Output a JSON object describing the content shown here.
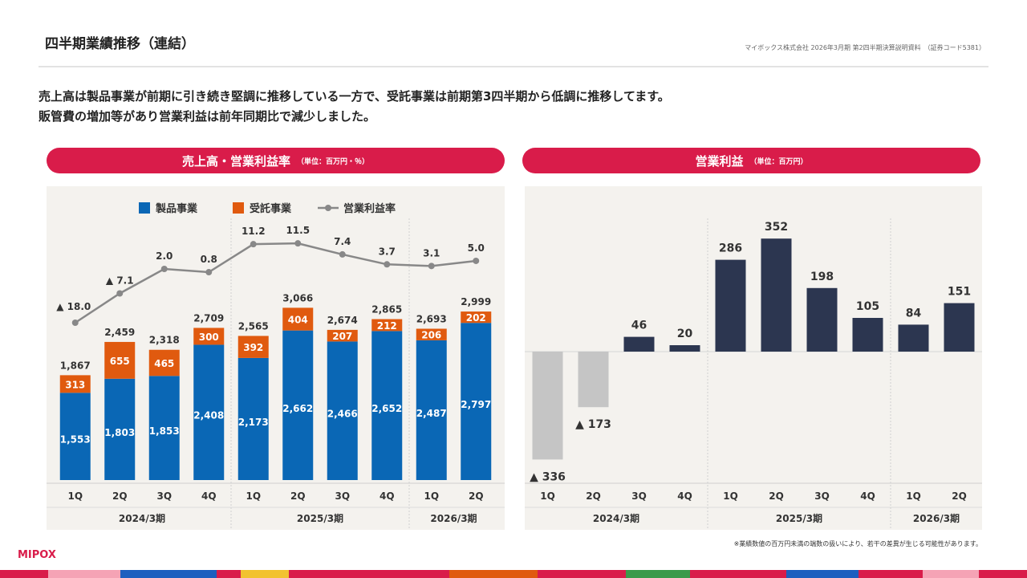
{
  "header": {
    "title": "四半期業績推移（連結）",
    "source": "マイボックス株式会社 2026年3月期 第2四半期決算説明資料　（証券コード5381）"
  },
  "lead": {
    "line1": "売上高は製品事業が前期に引き続き堅調に推移している一方で、受託事業は前期第3四半期から低調に推移してます。",
    "line2": "販管費の増加等があり営業利益は前年同期比で減少しました。"
  },
  "left_chart": {
    "title": "売上高・営業利益率",
    "unit": "（単位：百万円・％）"
  },
  "right_chart": {
    "title": "営業利益",
    "unit": "（単位：百万円）"
  },
  "footnote": "※業績数値の百万円未満の端数の扱いにより、若干の差異が生じる可能性があります。",
  "logo": "MIPOX",
  "colors": {
    "product": "#0a67b5",
    "contract": "#e05a0f",
    "line": "#888888",
    "profit_pos": "#2c3650",
    "profit_neg": "#c5c5c5",
    "accent": "#d91c4a"
  },
  "chart_data": [
    {
      "type": "bar",
      "stacked": true,
      "title": "売上高・営業利益率",
      "categories": [
        "1Q",
        "2Q",
        "3Q",
        "4Q",
        "1Q",
        "2Q",
        "3Q",
        "4Q",
        "1Q",
        "2Q"
      ],
      "groups": [
        {
          "label": "2024/3期",
          "count": 4
        },
        {
          "label": "2025/3期",
          "count": 4
        },
        {
          "label": "2026/3期",
          "count": 2
        }
      ],
      "series": [
        {
          "name": "製品事業",
          "values": [
            1553,
            1803,
            1853,
            2408,
            2173,
            2662,
            2466,
            2652,
            2487,
            2797
          ]
        },
        {
          "name": "受託事業",
          "values": [
            313,
            655,
            465,
            300,
            392,
            404,
            207,
            212,
            206,
            202
          ]
        }
      ],
      "totals": [
        1867,
        2459,
        2318,
        2709,
        2565,
        3066,
        2674,
        2865,
        2693,
        2999
      ],
      "total_labels": [
        "1,867",
        "2,459",
        "2,318",
        "2,709",
        "2,565",
        "3,066",
        "2,674",
        "2,865",
        "2,693",
        "2,999"
      ],
      "product_labels": [
        "1,553",
        "1,803",
        "1,853",
        "2,408",
        "2,173",
        "2,662",
        "2,466",
        "2,652",
        "2,487",
        "2,797"
      ],
      "contract_labels": [
        "313",
        "655",
        "465",
        "300",
        "392",
        "404",
        "207",
        "212",
        "206",
        "202"
      ],
      "line": {
        "name": "営業利益率",
        "values": [
          -18.0,
          -7.1,
          2.0,
          0.8,
          11.2,
          11.5,
          7.4,
          3.7,
          3.1,
          5.0
        ],
        "labels": [
          "▲ 18.0",
          "▲ 7.1",
          "2.0",
          "0.8",
          "11.2",
          "11.5",
          "7.4",
          "3.7",
          "3.1",
          "5.0"
        ],
        "ylim": [
          -18,
          12
        ]
      },
      "ylim": [
        0,
        3500
      ],
      "legend": [
        "製品事業",
        "受託事業",
        "営業利益率"
      ]
    },
    {
      "type": "bar",
      "title": "営業利益",
      "categories": [
        "1Q",
        "2Q",
        "3Q",
        "4Q",
        "1Q",
        "2Q",
        "3Q",
        "4Q",
        "1Q",
        "2Q"
      ],
      "groups": [
        {
          "label": "2024/3期",
          "count": 4
        },
        {
          "label": "2025/3期",
          "count": 4
        },
        {
          "label": "2026/3期",
          "count": 2
        }
      ],
      "values": [
        -336,
        -173,
        46,
        20,
        286,
        352,
        198,
        105,
        84,
        151
      ],
      "labels": [
        "▲ 336",
        "▲ 173",
        "46",
        "20",
        "286",
        "352",
        "198",
        "105",
        "84",
        "151"
      ],
      "ylim": [
        -400,
        400
      ]
    }
  ]
}
